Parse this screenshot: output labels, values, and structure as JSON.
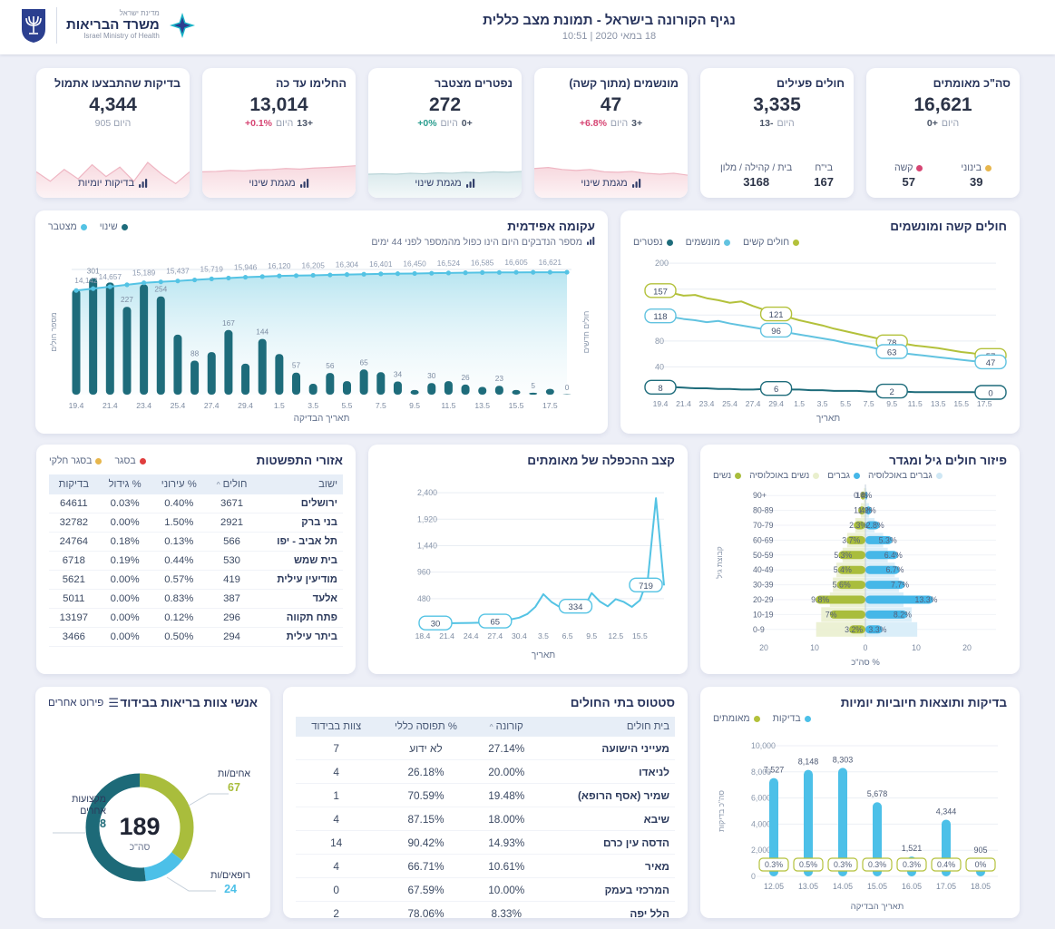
{
  "header": {
    "title": "נגיף הקורונה בישראל - תמונת מצב כללית",
    "datetime": "18 במאי 2020  |  10:51",
    "logo": {
      "he1": "מדינת ישראל",
      "he2": "משרד הבריאות",
      "en": "Israel Ministry of Health"
    }
  },
  "colors": {
    "teal_dark": "#1e6c7b",
    "blue_light": "#54c3e4",
    "olive": "#b3c13b",
    "navy": "#27335c",
    "red": "#d64573",
    "yellow": "#e7b64c",
    "closure_red": "#e03e3e"
  },
  "kpis": [
    {
      "title": "סה\"כ מאומתים",
      "value": "16,621",
      "delta": [
        {
          "t": "0+",
          "s": "num"
        },
        {
          "t": "היום",
          "s": "word"
        }
      ],
      "stats": [
        {
          "dot": "#e7b64c",
          "label": "בינוני",
          "value": "39"
        },
        {
          "dot": "#d64573",
          "label": "קשה",
          "value": "57"
        }
      ]
    },
    {
      "title": "חולים פעילים",
      "value": "3,335",
      "delta": [
        {
          "t": "13-",
          "s": "num"
        },
        {
          "t": "היום",
          "s": "word"
        }
      ],
      "stats": [
        {
          "label": "בי\"ח",
          "value": "167"
        },
        {
          "label": "בית / קהילה / מלון",
          "value": "3168"
        }
      ]
    },
    {
      "title": "מונשמים (מתוך קשה)",
      "value": "47",
      "delta": [
        {
          "t": "+6.8%",
          "s": "red"
        },
        {
          "t": "היום",
          "s": "word"
        },
        {
          "t": "3+",
          "s": "num"
        }
      ],
      "link": "מגמת שינוי",
      "spark": {
        "kind": "pink",
        "values": [
          62,
          64,
          60,
          58,
          60,
          55,
          54,
          56,
          52,
          50,
          52,
          48
        ]
      }
    },
    {
      "title": "נפטרים מצטבר",
      "value": "272",
      "delta": [
        {
          "t": "+0%",
          "s": "teal"
        },
        {
          "t": "היום",
          "s": "word"
        },
        {
          "t": "0+",
          "s": "num"
        }
      ],
      "link": "מגמת שינוי",
      "spark": {
        "kind": "teal",
        "values": [
          50,
          51,
          50,
          52,
          51,
          53,
          52,
          54,
          53,
          55,
          54,
          56
        ]
      }
    },
    {
      "title": "החלימו עד כה",
      "value": "13,014",
      "delta": [
        {
          "t": "+0.1%",
          "s": "red"
        },
        {
          "t": "היום",
          "s": "word"
        },
        {
          "t": "13+",
          "s": "num"
        }
      ],
      "link": "מגמת שינוי",
      "spark": {
        "kind": "pink",
        "values": [
          55,
          56,
          58,
          57,
          59,
          60,
          62,
          61,
          63,
          64,
          66,
          68
        ]
      }
    },
    {
      "title": "בדיקות שהתבצעו אתמול",
      "value": "4,344",
      "delta": [
        {
          "t": "905 היום",
          "s": "word"
        }
      ],
      "link": "בדיקות יומיות",
      "spark": {
        "kind": "pink",
        "values": [
          55,
          35,
          60,
          40,
          70,
          45,
          65,
          35,
          75,
          50,
          30,
          55
        ]
      }
    }
  ],
  "panels": {
    "severe": {
      "title": "חולים קשה ומונשמים"
    },
    "epidemic": {
      "title": "עקומה אפידמית",
      "subtitle": "מספר הנדבקים היום הינו כפול מהמספר לפני 44 ימים"
    },
    "pyramid": {
      "title": "פיזור חולים גיל ומגדר"
    },
    "doubling": {
      "title": "קצב ההכפלה של מאומתים"
    },
    "spread": {
      "title": "אזורי התפשטות",
      "legend": [
        {
          "label": "בסגר",
          "color": "#e03e3e"
        },
        {
          "label": "בסגר חלקי",
          "color": "#e7b64c"
        }
      ],
      "columns": [
        "ישוב",
        "חולים",
        "% עירוני",
        "% גידול",
        "בדיקות"
      ],
      "sort_col": 1,
      "rows": [
        [
          "ירושלים",
          "3671",
          "0.40%",
          "0.03%",
          "64611"
        ],
        [
          "בני ברק",
          "2921",
          "1.50%",
          "0.00%",
          "32782"
        ],
        [
          "תל אביב - יפו",
          "566",
          "0.13%",
          "0.18%",
          "24764"
        ],
        [
          "בית שמש",
          "530",
          "0.44%",
          "0.19%",
          "6718"
        ],
        [
          "מודיעין עילית",
          "419",
          "0.57%",
          "0.00%",
          "5621"
        ],
        [
          "אלעד",
          "387",
          "0.83%",
          "0.00%",
          "5011"
        ],
        [
          "פתח תקווה",
          "296",
          "0.12%",
          "0.00%",
          "13197"
        ],
        [
          "ביתר עילית",
          "294",
          "0.50%",
          "0.00%",
          "3466"
        ]
      ]
    },
    "tests": {
      "title": "בדיקות ותוצאות חיוביות יומיות"
    },
    "hospitals": {
      "title": "סטטוס בתי החולים",
      "columns": [
        "בית חולים",
        "קורונה",
        "% תפוסה כללי",
        "צוות בבידוד"
      ],
      "sort_col": 1,
      "rows": [
        [
          "מעייני הישועה",
          "27.14%",
          "לא ידוע",
          "7"
        ],
        [
          "לניאדו",
          "20.00%",
          "26.18%",
          "4"
        ],
        [
          "שמיר (אסף הרופא)",
          "19.48%",
          "70.59%",
          "1"
        ],
        [
          "שיבא",
          "18.00%",
          "87.15%",
          "4"
        ],
        [
          "הדסה עין כרם",
          "14.93%",
          "90.42%",
          "14"
        ],
        [
          "מאיר",
          "10.61%",
          "66.71%",
          "4"
        ],
        [
          "המרכזי בעמק",
          "10.00%",
          "67.59%",
          "0"
        ],
        [
          "הלל יפה",
          "8.33%",
          "78.06%",
          "2"
        ]
      ]
    },
    "isolation": {
      "title": "אנשי צוות בריאות בבידוד",
      "button": "פירוט אחרים",
      "center_value": "189",
      "center_label": "סה\"כ"
    }
  },
  "chart_data": [
    {
      "id": "severe_ventilated",
      "type": "line",
      "panel": "severe",
      "x": [
        "19.4",
        "20.4",
        "21.4",
        "22.4",
        "23.4",
        "24.4",
        "25.4",
        "26.4",
        "27.4",
        "28.4",
        "29.4",
        "30.4",
        "1.5",
        "2.5",
        "3.5",
        "4.5",
        "5.5",
        "6.5",
        "7.5",
        "8.5",
        "9.5",
        "10.5",
        "11.5",
        "12.5",
        "13.5",
        "14.5",
        "15.5",
        "16.5",
        "17.5",
        "18.5"
      ],
      "xlabel": "תאריך",
      "yticks": [
        40,
        80,
        120,
        160,
        200
      ],
      "ylim": [
        0,
        210
      ],
      "legend": [
        {
          "label": "חולים קשים",
          "color": "#b3c13b"
        },
        {
          "label": "מונשמים",
          "color": "#62c3e0"
        },
        {
          "label": "נפטרים",
          "color": "#1e6c7b"
        }
      ],
      "series": [
        {
          "name": "חולים קשים",
          "color": "#b3c13b",
          "values": [
            157,
            154,
            150,
            151,
            146,
            143,
            139,
            141,
            134,
            128,
            121,
            117,
            112,
            108,
            104,
            99,
            95,
            91,
            87,
            83,
            78,
            76,
            73,
            71,
            69,
            66,
            63,
            61,
            58,
            57
          ]
        },
        {
          "name": "מונשמים",
          "color": "#62c3e0",
          "values": [
            118,
            117,
            114,
            112,
            109,
            111,
            107,
            104,
            101,
            98,
            96,
            93,
            90,
            87,
            84,
            81,
            77,
            74,
            71,
            67,
            63,
            61,
            59,
            57,
            55,
            53,
            51,
            49,
            48,
            47
          ]
        },
        {
          "name": "נפטרים",
          "color": "#1e6c7b",
          "values": [
            8,
            9,
            8,
            7,
            7,
            6,
            6,
            5,
            5,
            6,
            6,
            5,
            5,
            4,
            4,
            3,
            3,
            3,
            2,
            2,
            2,
            2,
            1,
            1,
            1,
            1,
            1,
            1,
            0,
            0
          ]
        }
      ],
      "callout_idx": [
        0,
        10,
        20,
        29
      ]
    },
    {
      "id": "epidemic",
      "type": "bar+line",
      "panel": "epidemic",
      "x": [
        "19.4",
        "20.4",
        "21.4",
        "22.4",
        "23.4",
        "24.4",
        "25.4",
        "26.4",
        "27.4",
        "28.4",
        "29.4",
        "30.4",
        "1.5",
        "2.5",
        "3.5",
        "4.5",
        "5.5",
        "6.5",
        "7.5",
        "8.5",
        "9.5",
        "10.5",
        "11.5",
        "12.5",
        "13.5",
        "14.5",
        "15.5",
        "16.5",
        "17.5",
        "18.5"
      ],
      "xlabel": "תאריך הבדיקה",
      "ylabel_left": "מספר חולים",
      "ylabel_right": "חולים חדשים",
      "legend": [
        {
          "label": "שינוי",
          "color": "#1e6c7b"
        },
        {
          "label": "מצטבר",
          "color": "#54c3e4"
        }
      ],
      "bars_name": "שינוי",
      "line_name": "מצטבר",
      "bars": [
        272,
        301,
        290,
        227,
        285,
        254,
        155,
        88,
        110,
        167,
        80,
        144,
        105,
        57,
        28,
        56,
        35,
        65,
        58,
        34,
        12,
        30,
        35,
        26,
        20,
        23,
        12,
        5,
        15,
        0
      ],
      "line": [
        14142,
        14400,
        14657,
        14923,
        15189,
        15316,
        15437,
        15578,
        15719,
        15833,
        15946,
        16033,
        16120,
        16163,
        16205,
        16255,
        16304,
        16353,
        16401,
        16426,
        16450,
        16487,
        16524,
        16555,
        16585,
        16595,
        16605,
        16613,
        16621,
        16621
      ]
    },
    {
      "id": "age_gender",
      "type": "pyramid",
      "panel": "pyramid",
      "categories": [
        "+90",
        "80-89",
        "70-79",
        "60-69",
        "50-59",
        "40-49",
        "30-39",
        "20-29",
        "10-19",
        "0-9"
      ],
      "legend": [
        {
          "label": "גברים באוכלוסיה",
          "color": "#cfe7f4"
        },
        {
          "label": "גברים",
          "color": "#45b7e8"
        },
        {
          "label": "נשים באוכלוסיה",
          "color": "#e9efcd"
        },
        {
          "label": "נשים",
          "color": "#a9bd3c"
        }
      ],
      "women": [
        1.0,
        1.4,
        2.3,
        3.7,
        5.3,
        5.4,
        5.6,
        9.8,
        7.0,
        3.2
      ],
      "women_labels": [
        "1%",
        "1.4%",
        "2.3%",
        "3.7%",
        "5.3%",
        "5.4%",
        "5.6%",
        "9.8%",
        "7%",
        "3.2%"
      ],
      "men": [
        0.4,
        1.2,
        2.8,
        5.3,
        6.4,
        6.7,
        7.7,
        13.3,
        8.2,
        3.3
      ],
      "men_labels": [
        "0.4%",
        "1.2%",
        "2.8%",
        "5.3%",
        "6.4%",
        "6.7%",
        "7.7%",
        "13.3%",
        "8.2%",
        "3.3%"
      ],
      "women_pop": [
        0.3,
        0.9,
        2.0,
        3.6,
        4.5,
        5.7,
        6.4,
        7.0,
        8.7,
        9.7
      ],
      "men_pop": [
        0.2,
        0.7,
        1.8,
        3.5,
        4.4,
        5.8,
        6.6,
        7.5,
        9.1,
        10.2
      ],
      "xticks": [
        "20",
        "10",
        "0",
        "10",
        "20"
      ],
      "xlim": [
        -20,
        20
      ],
      "xlabel": "% סה\"כ",
      "ylabel": "קבוצת גיל"
    },
    {
      "id": "doubling",
      "type": "line",
      "panel": "doubling",
      "x": [
        "18.4",
        "19.4",
        "20.4",
        "21.4",
        "22.4",
        "23.4",
        "24.4",
        "25.4",
        "26.4",
        "27.4",
        "28.4",
        "29.4",
        "30.4",
        "1.5",
        "2.5",
        "3.5",
        "4.5",
        "5.5",
        "6.5",
        "7.5",
        "8.5",
        "9.5",
        "10.5",
        "11.5",
        "12.5",
        "13.5",
        "14.5",
        "15.5",
        "16.5",
        "17.5",
        "18.5"
      ],
      "xtick_every": 3,
      "xlabel": "תאריך",
      "yticks": [
        480,
        960,
        1440,
        1920,
        2400
      ],
      "ylim": [
        0,
        2500
      ],
      "color": "#54c3e4",
      "values": [
        30,
        31,
        32,
        33,
        35,
        37,
        40,
        44,
        50,
        65,
        82,
        105,
        135,
        200,
        330,
        560,
        420,
        330,
        460,
        334,
        300,
        580,
        430,
        340,
        470,
        420,
        330,
        450,
        850,
        2300,
        719
      ],
      "callouts": [
        [
          0,
          "30"
        ],
        [
          9,
          "65"
        ],
        [
          19,
          "334"
        ],
        [
          30,
          "719"
        ]
      ]
    },
    {
      "id": "daily_tests",
      "type": "bar",
      "panel": "tests",
      "categories": [
        "12.05",
        "13.05",
        "14.05",
        "15.05",
        "16.05",
        "17.05",
        "18.05"
      ],
      "values": [
        7527,
        8148,
        8303,
        5678,
        1521,
        4344,
        905
      ],
      "badges": [
        "0.3%",
        "0.5%",
        "0.3%",
        "0.3%",
        "0.3%",
        "0.4%",
        "0%"
      ],
      "legend": [
        {
          "label": "בדיקות",
          "color": "#4cc0e8"
        },
        {
          "label": "מאומתים",
          "color": "#b3c13b"
        }
      ],
      "yticks": [
        0,
        2000,
        4000,
        6000,
        8000,
        10000
      ],
      "ylim": [
        0,
        10000
      ],
      "ylabel": "סה\"כ בדיקות",
      "xlabel": "תאריך הבדיקה"
    },
    {
      "id": "staff_isolation",
      "type": "donut",
      "panel": "isolation",
      "total": 189,
      "total_label": "סה\"כ",
      "segments": [
        {
          "label": "אחים/ות",
          "value": 67,
          "color": "#a9bd3c"
        },
        {
          "label": "רופאים/ות",
          "value": 24,
          "color": "#4cc0e8"
        },
        {
          "label": "מקצועות אחרים",
          "value": 98,
          "color": "#1d6a78"
        }
      ]
    }
  ]
}
